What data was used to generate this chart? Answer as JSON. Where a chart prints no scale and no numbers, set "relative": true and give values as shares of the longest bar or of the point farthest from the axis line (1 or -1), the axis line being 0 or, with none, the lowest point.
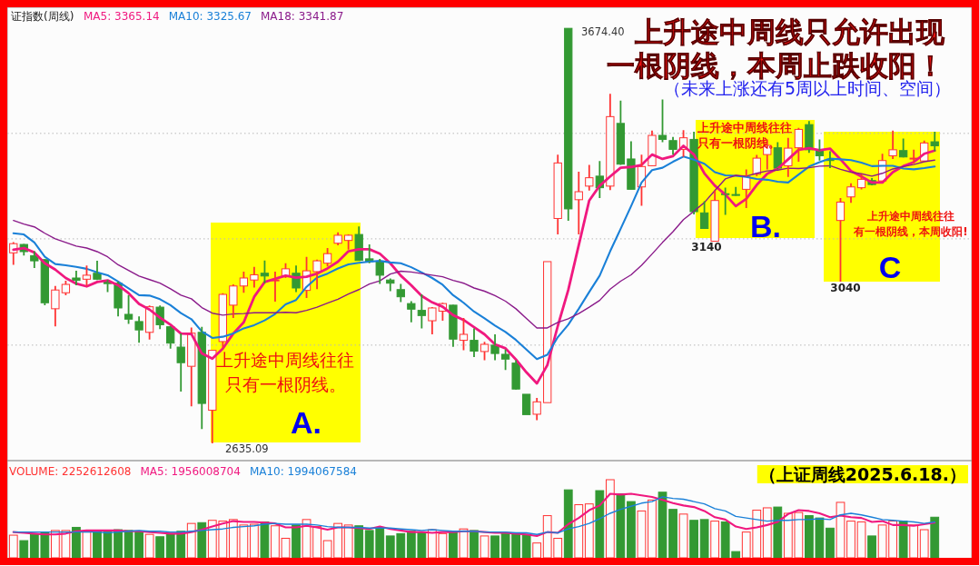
{
  "chart_data": [
    {
      "type": "candlestick",
      "title": "上升途中周线只允许出现一根阴线，本周止跌收阳！",
      "subtitle": "（未来上涨还有5周以上时间、空间）",
      "annotations": [
        "证指数(周线)",
        "上升途中周线往往只有一根阴线。",
        "上升途中周线往往只有一根阴线。",
        "上升途中周线往往有一根阴线，本周收阳!",
        "A.",
        "B.",
        "C",
        "3674.40",
        "2635.09",
        "3140",
        "3040"
      ],
      "categories": [
        null,
        null,
        null,
        null,
        null,
        null,
        null,
        null,
        null,
        null,
        null,
        null,
        null,
        null,
        null,
        null,
        null,
        null,
        null,
        null,
        null,
        null,
        null,
        null,
        null,
        null,
        null,
        null,
        null,
        null,
        null,
        null,
        null,
        null,
        null,
        null,
        null,
        null,
        null,
        null,
        null,
        null,
        null,
        null,
        null,
        null,
        null,
        null,
        null,
        null,
        null,
        null,
        null,
        null,
        null,
        null,
        null,
        null,
        null,
        null,
        null,
        null,
        null,
        null,
        null,
        null,
        null,
        null,
        null,
        null,
        null,
        null,
        null,
        null,
        null,
        null,
        null,
        null,
        null,
        null,
        null,
        null,
        null,
        null,
        null,
        null,
        null,
        null,
        null
      ],
      "ohlc": [
        [
          3112,
          3139,
          3082,
          3135
        ],
        [
          3133,
          3134,
          3105,
          3115
        ],
        [
          3105,
          3116,
          3074,
          3092
        ],
        [
          3095,
          3096,
          2981,
          2987
        ],
        [
          2972,
          3029,
          2928,
          3019
        ],
        [
          3012,
          3042,
          3006,
          3033
        ],
        [
          3049,
          3067,
          3031,
          3043
        ],
        [
          3046,
          3080,
          3029,
          3056
        ],
        [
          3061,
          3092,
          3044,
          3046
        ],
        [
          3040,
          3044,
          3014,
          3035
        ],
        [
          3036,
          3040,
          2953,
          2974
        ],
        [
          2958,
          3006,
          2934,
          2946
        ],
        [
          2940,
          2953,
          2887,
          2919
        ],
        [
          2913,
          2980,
          2895,
          2977
        ],
        [
          2976,
          2980,
          2921,
          2932
        ],
        [
          2927,
          2928,
          2872,
          2886
        ],
        [
          2876,
          2910,
          2765,
          2837
        ],
        [
          2828,
          2925,
          2728,
          2911
        ],
        [
          2913,
          2927,
          2671,
          2735
        ],
        [
          2718,
          2869,
          2635.09,
          2868
        ],
        [
          2890,
          3011,
          2874,
          3008
        ],
        [
          2981,
          3033,
          2949,
          3029
        ],
        [
          3029,
          3065,
          3012,
          3049
        ],
        [
          3044,
          3077,
          3025,
          3057
        ],
        [
          3061,
          3093,
          3036,
          3054
        ],
        [
          3042,
          3065,
          2990,
          3044
        ],
        [
          3054,
          3086,
          3049,
          3072
        ],
        [
          3061,
          3080,
          3014,
          3024
        ],
        [
          3018,
          3102,
          2999,
          3067
        ],
        [
          3065,
          3095,
          3021,
          3092
        ],
        [
          3086,
          3124,
          3078,
          3110
        ],
        [
          3136,
          3163,
          3131,
          3156
        ],
        [
          3143,
          3158,
          3120,
          3156
        ],
        [
          3158,
          3178,
          3092,
          3093
        ],
        [
          3097,
          3133,
          3086,
          3090
        ],
        [
          3090,
          3097,
          3034,
          3056
        ],
        [
          3044,
          3048,
          3016,
          3036
        ],
        [
          3020,
          3034,
          2989,
          3002
        ],
        [
          2985,
          2991,
          2938,
          2971
        ],
        [
          2968,
          3008,
          2923,
          2955
        ],
        [
          2942,
          2976,
          2908,
          2974
        ],
        [
          2966,
          2987,
          2942,
          2985
        ],
        [
          2981,
          2982,
          2877,
          2896
        ],
        [
          2893,
          2949,
          2868,
          2908
        ],
        [
          2893,
          2923,
          2851,
          2866
        ],
        [
          2865,
          2889,
          2843,
          2883
        ],
        [
          2881,
          2908,
          2843,
          2860
        ],
        [
          2858,
          2870,
          2819,
          2846
        ],
        [
          2836,
          2843,
          2769,
          2771
        ],
        [
          2758,
          2758,
          2707,
          2707
        ],
        [
          2708,
          2749,
          2693,
          2739
        ],
        [
          2737,
          3090,
          2737,
          3090
        ],
        [
          3198,
          3358,
          3158,
          3337
        ],
        [
          3674,
          3674.4,
          3192,
          3222
        ],
        [
          3245,
          3315,
          3158,
          3265
        ],
        [
          3279,
          3332,
          3268,
          3300
        ],
        [
          3304,
          3342,
          3249,
          3275
        ],
        [
          3279,
          3510,
          3269,
          3453
        ],
        [
          3436,
          3493,
          3332,
          3334
        ],
        [
          3347,
          3391,
          3270,
          3271
        ],
        [
          3277,
          3358,
          3230,
          3328
        ],
        [
          3330,
          3418,
          3329,
          3406
        ],
        [
          3406,
          3496,
          3389,
          3396
        ],
        [
          3393,
          3402,
          3358,
          3371
        ],
        [
          3371,
          3419,
          3352,
          3400
        ],
        [
          3396,
          3415,
          3208,
          3215
        ],
        [
          3212,
          3241,
          3172,
          3173
        ],
        [
          3141,
          3268,
          3140,
          3243
        ],
        [
          3260,
          3275,
          3207,
          3258
        ],
        [
          3258,
          3277,
          3255,
          3256
        ],
        [
          3271,
          3321,
          3224,
          3303
        ],
        [
          3309,
          3357,
          3304,
          3349
        ],
        [
          3358,
          3396,
          3321,
          3381
        ],
        [
          3375,
          3389,
          3322,
          3324
        ],
        [
          3330,
          3400,
          3302,
          3374
        ],
        [
          3375,
          3425,
          3340,
          3421
        ],
        [
          3433,
          3442,
          3362,
          3370
        ],
        [
          3368,
          3396,
          3343,
          3355
        ],
        [
          3346,
          3366,
          3324,
          3343
        ],
        [
          3193,
          3249,
          3040,
          3239
        ],
        [
          3252,
          3286,
          3237,
          3277
        ],
        [
          3275,
          3309,
          3271,
          3296
        ],
        [
          3293,
          3299,
          3281,
          3283
        ],
        [
          3292,
          3360,
          3290,
          3343
        ],
        [
          3355,
          3418,
          3347,
          3370
        ],
        [
          3368,
          3398,
          3351,
          3352
        ],
        [
          3347,
          3370,
          3336,
          3349
        ],
        [
          3342,
          3393,
          3341,
          3387
        ],
        [
          3390,
          3415,
          3366,
          3380
        ]
      ],
      "series": [
        {
          "name": "MA5: 3365.14",
          "type": "line",
          "color": "#f0187f",
          "values": [
            3120,
            3124,
            3113,
            3086,
            3070,
            3049,
            3035,
            3028,
            3039,
            3043,
            3031,
            3011,
            2984,
            2970,
            2950,
            2932,
            2910,
            2909,
            2860,
            2847,
            2872,
            2910,
            2938,
            3002,
            3039,
            3047,
            3055,
            3050,
            3052,
            3060,
            3073,
            3090,
            3116,
            3121,
            3121,
            3110,
            3086,
            3055,
            3031,
            3004,
            2988,
            2977,
            2956,
            2944,
            2926,
            2908,
            2883,
            2873,
            2845,
            2813,
            2785,
            2831,
            2929,
            3019,
            3131,
            3243,
            3280,
            3303,
            3325,
            3327,
            3332,
            3358,
            3347,
            3354,
            3380,
            3358,
            3311,
            3280,
            3258,
            3229,
            3247,
            3282,
            3310,
            3323,
            3346,
            3370,
            3374,
            3369,
            3373,
            3346,
            3317,
            3303,
            3288,
            3288,
            3314,
            3329,
            3339,
            3360,
            3368
          ]
        },
        {
          "name": "MA10: 3325.67",
          "type": "line",
          "color": "#1a80d8",
          "values": [
            3161,
            3158,
            3138,
            3102,
            3084,
            3081,
            3077,
            3072,
            3063,
            3056,
            3040,
            3023,
            3006,
            3005,
            2996,
            2981,
            2961,
            2946,
            2915,
            2899,
            2902,
            2910,
            2923,
            2931,
            2943,
            2959,
            2983,
            2994,
            3027,
            3050,
            3060,
            3073,
            3083,
            3087,
            3090,
            3092,
            3088,
            3086,
            3076,
            3063,
            3049,
            3032,
            3006,
            2987,
            2965,
            2948,
            2930,
            2914,
            2894,
            2870,
            2846,
            2857,
            2901,
            2932,
            2972,
            3014,
            3055,
            3116,
            3172,
            3229,
            3288,
            3319,
            3325,
            3340,
            3353,
            3345,
            3335,
            3314,
            3306,
            3305,
            3302,
            3297,
            3295,
            3290,
            3288,
            3308,
            3328,
            3339,
            3348,
            3346,
            3344,
            3338,
            3329,
            3330,
            3330,
            3323,
            3321,
            3324,
            3328
          ]
        },
        {
          "name": "MA18: 3341.87",
          "type": "line",
          "color": "#8a1a8a",
          "values": [
            3193,
            3184,
            3177,
            3161,
            3147,
            3138,
            3129,
            3124,
            3115,
            3102,
            3082,
            3068,
            3054,
            3045,
            3036,
            3022,
            3006,
            2997,
            2975,
            2961,
            2956,
            2959,
            2960,
            2962,
            2962,
            2962,
            2963,
            2962,
            2968,
            2976,
            2986,
            2996,
            3009,
            3020,
            3034,
            3042,
            3059,
            3066,
            3064,
            3060,
            3056,
            3052,
            3043,
            3036,
            3024,
            3016,
            3005,
            2991,
            2972,
            2948,
            2924,
            2924,
            2938,
            2947,
            2960,
            2976,
            2993,
            3021,
            3041,
            3057,
            3081,
            3109,
            3138,
            3165,
            3195,
            3216,
            3238,
            3268,
            3297,
            3306,
            3304,
            3311,
            3317,
            3319,
            3324,
            3323,
            3325,
            3329,
            3330,
            3321,
            3314,
            3310,
            3304,
            3311,
            3322,
            3328,
            3333,
            3340,
            3344
          ]
        }
      ],
      "yticks": [
        {
          "value": 3411,
          "label": null
        },
        {
          "value": 3147,
          "label": null
        },
        {
          "value": 2881,
          "label": null
        }
      ],
      "grid": "y"
    },
    {
      "type": "bar",
      "relative": true,
      "annotations": [
        "（上证周线2025.6.18.）"
      ],
      "categories": [
        null,
        null,
        null,
        null,
        null,
        null,
        null,
        null,
        null,
        null,
        null,
        null,
        null,
        null,
        null,
        null,
        null,
        null,
        null,
        null,
        null,
        null,
        null,
        null,
        null,
        null,
        null,
        null,
        null,
        null,
        null,
        null,
        null,
        null,
        null,
        null,
        null,
        null,
        null,
        null,
        null,
        null,
        null,
        null,
        null,
        null,
        null,
        null,
        null,
        null,
        null,
        null,
        null,
        null,
        null,
        null,
        null,
        null,
        null,
        null,
        null,
        null,
        null,
        null,
        null,
        null,
        null,
        null,
        null,
        null,
        null,
        null,
        null,
        null,
        null,
        null,
        null,
        null,
        null,
        null,
        null,
        null,
        null,
        null,
        null,
        null,
        null,
        null,
        null
      ],
      "series": [
        {
          "name": "VOLUME: 2252612608",
          "type": "bar",
          "color": "#ff3333",
          "values": [
            0.29,
            0.22,
            0.3,
            0.32,
            0.35,
            0.35,
            0.39,
            0.33,
            0.35,
            0.33,
            0.36,
            0.35,
            0.33,
            0.3,
            0.27,
            0.31,
            0.34,
            0.44,
            0.45,
            0.48,
            0.47,
            0.49,
            0.42,
            0.43,
            0.46,
            0.41,
            0.25,
            0.42,
            0.49,
            0.4,
            0.22,
            0.44,
            0.42,
            0.41,
            0.35,
            0.39,
            0.28,
            0.31,
            0.34,
            0.32,
            0.36,
            0.31,
            0.33,
            0.37,
            0.35,
            0.28,
            0.28,
            0.31,
            0.32,
            0.29,
            0.19,
            0.54,
            0.25,
            0.87,
            0.68,
            0.69,
            0.86,
            1,
            0.82,
            0.72,
            0.6,
            0.74,
            0.84,
            0.62,
            0.56,
            0.48,
            0.49,
            0.47,
            0.46,
            0.08,
            0.33,
            0.61,
            0.64,
            0.65,
            0.57,
            0.58,
            0.54,
            0.51,
            0.38,
            0.71,
            0.47,
            0.46,
            0.28,
            0.42,
            0.47,
            0.47,
            0.42,
            0.36,
            0.52
          ],
          "colors": [
            "#ff3333",
            "#339933",
            "#339933",
            "#339933",
            "#ff3333",
            "#ff3333",
            "#339933",
            "#ff3333",
            "#339933",
            "#339933",
            "#339933",
            "#339933",
            "#339933",
            "#ff3333",
            "#339933",
            "#339933",
            "#339933",
            "#ff3333",
            "#339933",
            "#ff3333",
            "#ff3333",
            "#ff3333",
            "#ff3333",
            "#ff3333",
            "#339933",
            "#ff3333",
            "#ff3333",
            "#339933",
            "#ff3333",
            "#ff3333",
            "#ff3333",
            "#ff3333",
            "#ff3333",
            "#339933",
            "#339933",
            "#339933",
            "#339933",
            "#339933",
            "#339933",
            "#339933",
            "#ff3333",
            "#ff3333",
            "#339933",
            "#ff3333",
            "#339933",
            "#ff3333",
            "#339933",
            "#339933",
            "#339933",
            "#339933",
            "#ff3333",
            "#ff3333",
            "#ff3333",
            "#339933",
            "#ff3333",
            "#ff3333",
            "#339933",
            "#ff3333",
            "#339933",
            "#339933",
            "#ff3333",
            "#ff3333",
            "#339933",
            "#339933",
            "#ff3333",
            "#339933",
            "#339933",
            "#ff3333",
            "#339933",
            "#339933",
            "#ff3333",
            "#ff3333",
            "#ff3333",
            "#339933",
            "#ff3333",
            "#ff3333",
            "#339933",
            "#339933",
            "#339933",
            "#ff3333",
            "#ff3333",
            "#ff3333",
            "#339933",
            "#ff3333",
            "#ff3333",
            "#339933",
            "#ff3333",
            "#ff3333",
            "#339933"
          ]
        },
        {
          "name": "MA5: 1956008704",
          "type": "line",
          "color": "#f0187f",
          "values": [
            0.33,
            0.32,
            0.31,
            0.3,
            0.3,
            0.31,
            0.34,
            0.35,
            0.35,
            0.35,
            0.35,
            0.34,
            0.34,
            0.33,
            0.32,
            0.31,
            0.31,
            0.33,
            0.36,
            0.4,
            0.44,
            0.47,
            0.46,
            0.46,
            0.45,
            0.44,
            0.39,
            0.39,
            0.41,
            0.39,
            0.36,
            0.39,
            0.39,
            0.38,
            0.37,
            0.4,
            0.37,
            0.35,
            0.33,
            0.33,
            0.32,
            0.33,
            0.33,
            0.34,
            0.34,
            0.33,
            0.32,
            0.32,
            0.31,
            0.3,
            0.28,
            0.33,
            0.32,
            0.43,
            0.51,
            0.61,
            0.67,
            0.82,
            0.81,
            0.82,
            0.8,
            0.78,
            0.74,
            0.7,
            0.67,
            0.65,
            0.6,
            0.52,
            0.49,
            0.4,
            0.37,
            0.39,
            0.42,
            0.46,
            0.56,
            0.61,
            0.6,
            0.57,
            0.52,
            0.54,
            0.52,
            0.51,
            0.46,
            0.47,
            0.42,
            0.42,
            0.41,
            0.43,
            0.45
          ]
        },
        {
          "name": "MA10: 1994067584",
          "type": "line",
          "color": "#1a80d8",
          "values": [
            0.33,
            0.33,
            0.33,
            0.33,
            0.33,
            0.33,
            0.33,
            0.33,
            0.33,
            0.32,
            0.33,
            0.34,
            0.35,
            0.34,
            0.34,
            0.33,
            0.33,
            0.34,
            0.35,
            0.36,
            0.37,
            0.39,
            0.4,
            0.41,
            0.43,
            0.44,
            0.43,
            0.43,
            0.43,
            0.42,
            0.4,
            0.39,
            0.39,
            0.39,
            0.38,
            0.38,
            0.38,
            0.37,
            0.36,
            0.35,
            0.36,
            0.35,
            0.34,
            0.34,
            0.34,
            0.33,
            0.33,
            0.33,
            0.32,
            0.32,
            0.3,
            0.33,
            0.32,
            0.37,
            0.4,
            0.44,
            0.5,
            0.57,
            0.62,
            0.66,
            0.7,
            0.72,
            0.78,
            0.76,
            0.75,
            0.72,
            0.69,
            0.63,
            0.6,
            0.53,
            0.51,
            0.49,
            0.47,
            0.48,
            0.48,
            0.49,
            0.49,
            0.5,
            0.49,
            0.55,
            0.57,
            0.55,
            0.52,
            0.49,
            0.48,
            0.47,
            0.46,
            0.44,
            0.46
          ]
        }
      ]
    }
  ]
}
